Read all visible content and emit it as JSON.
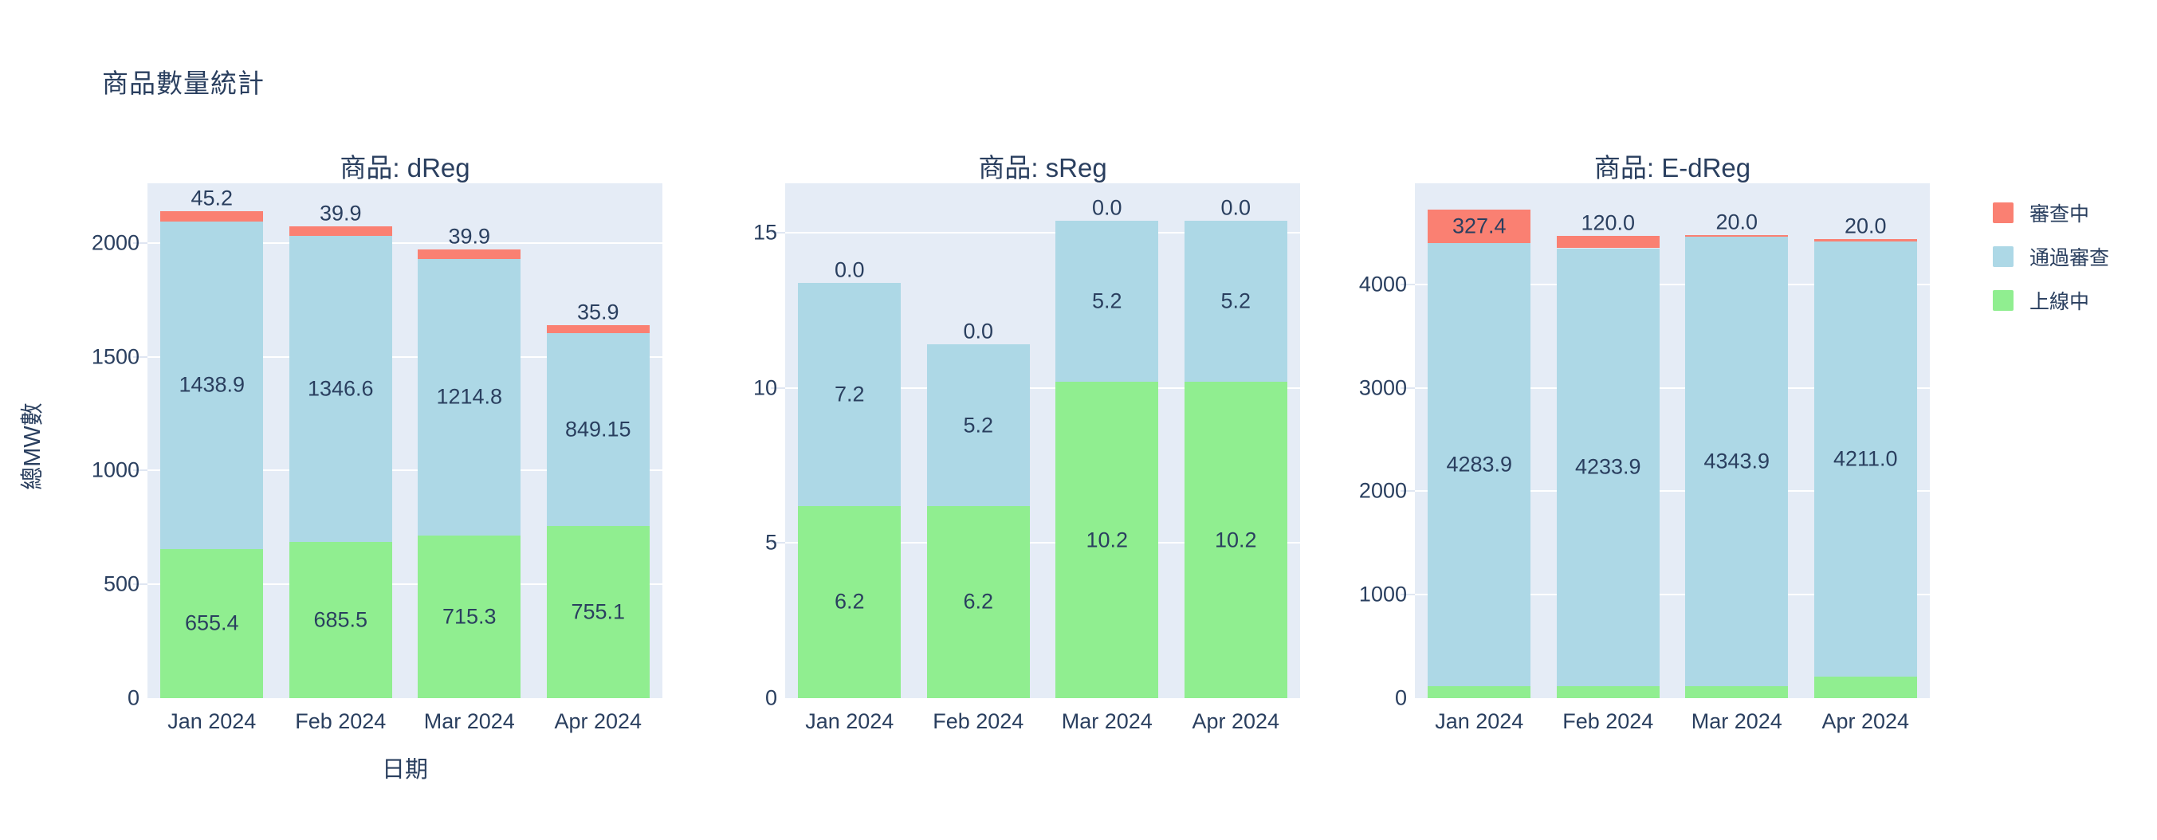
{
  "page": {
    "title": "商品數量統計"
  },
  "legend": {
    "items": [
      {
        "label": "審查中",
        "color": "#FA8072"
      },
      {
        "label": "通過審查",
        "color": "#ADD8E6"
      },
      {
        "label": "上線中",
        "color": "#90EE90"
      }
    ]
  },
  "colors": {
    "text": "#2A3F5F",
    "plot_background": "#E5ECF6",
    "gridline": "#FFFFFF",
    "under_review": "#FA8072",
    "approved": "#ADD8E6",
    "online": "#90EE90"
  },
  "chart_data": {
    "type": "bar",
    "barmode": "stack",
    "title": "商品數量統計",
    "xlabel": "日期",
    "ylabel": "總MW數",
    "grid": true,
    "legend_position": "top-right",
    "categories": [
      "Jan 2024",
      "Feb 2024",
      "Mar 2024",
      "Apr 2024"
    ],
    "stack_order_bottom_to_top": [
      "上線中",
      "通過審查",
      "審查中"
    ],
    "facets": [
      {
        "title": "商品: dReg",
        "ylim": [
          0,
          2262
        ],
        "yticks": [
          0,
          500,
          1000,
          1500,
          2000
        ],
        "series": [
          {
            "name": "上線中",
            "color": "#90EE90",
            "values": [
              655.4,
              685.5,
              715.3,
              755.1
            ],
            "labels": [
              "655.4",
              "685.5",
              "715.3",
              "755.1"
            ]
          },
          {
            "name": "通過審查",
            "color": "#ADD8E6",
            "values": [
              1438.9,
              1346.6,
              1214.8,
              849.15
            ],
            "labels": [
              "1438.9",
              "1346.6",
              "1214.8",
              "849.15"
            ]
          },
          {
            "name": "審查中",
            "color": "#FA8072",
            "values": [
              45.2,
              39.9,
              39.9,
              35.9
            ],
            "labels": [
              "45.2",
              "39.9",
              "39.9",
              "35.9"
            ]
          }
        ]
      },
      {
        "title": "商品: sReg",
        "ylim": [
          0,
          16.6
        ],
        "yticks": [
          0,
          5,
          10,
          15
        ],
        "series": [
          {
            "name": "上線中",
            "color": "#90EE90",
            "values": [
              6.2,
              6.2,
              10.2,
              10.2
            ],
            "labels": [
              "6.2",
              "6.2",
              "10.2",
              "10.2"
            ]
          },
          {
            "name": "通過審查",
            "color": "#ADD8E6",
            "values": [
              7.2,
              5.2,
              5.2,
              5.2
            ],
            "labels": [
              "7.2",
              "5.2",
              "5.2",
              "5.2"
            ]
          },
          {
            "name": "審查中",
            "color": "#FA8072",
            "values": [
              0,
              0,
              0,
              0
            ],
            "labels": [
              "0.0",
              "0.0",
              "0.0",
              "0.0"
            ]
          }
        ]
      },
      {
        "title": "商品: E-dReg",
        "ylim": [
          0,
          4978
        ],
        "yticks": [
          0,
          1000,
          2000,
          3000,
          4000
        ],
        "series": [
          {
            "name": "上線中",
            "color": "#90EE90",
            "values": [
              116.0,
              116.0,
              116.0,
              207.9
            ],
            "labels": [
              "116.0",
              "116.0",
              "116.0",
              "207.9"
            ]
          },
          {
            "name": "通過審查",
            "color": "#ADD8E6",
            "values": [
              4283.9,
              4233.9,
              4343.9,
              4211.0
            ],
            "labels": [
              "4283.9",
              "4233.9",
              "4343.9",
              "4211.0"
            ]
          },
          {
            "name": "審查中",
            "color": "#FA8072",
            "values": [
              327.4,
              120.0,
              20.0,
              20.0
            ],
            "labels": [
              "327.4",
              "120.0",
              "20.0",
              "20.0"
            ]
          }
        ]
      }
    ]
  }
}
